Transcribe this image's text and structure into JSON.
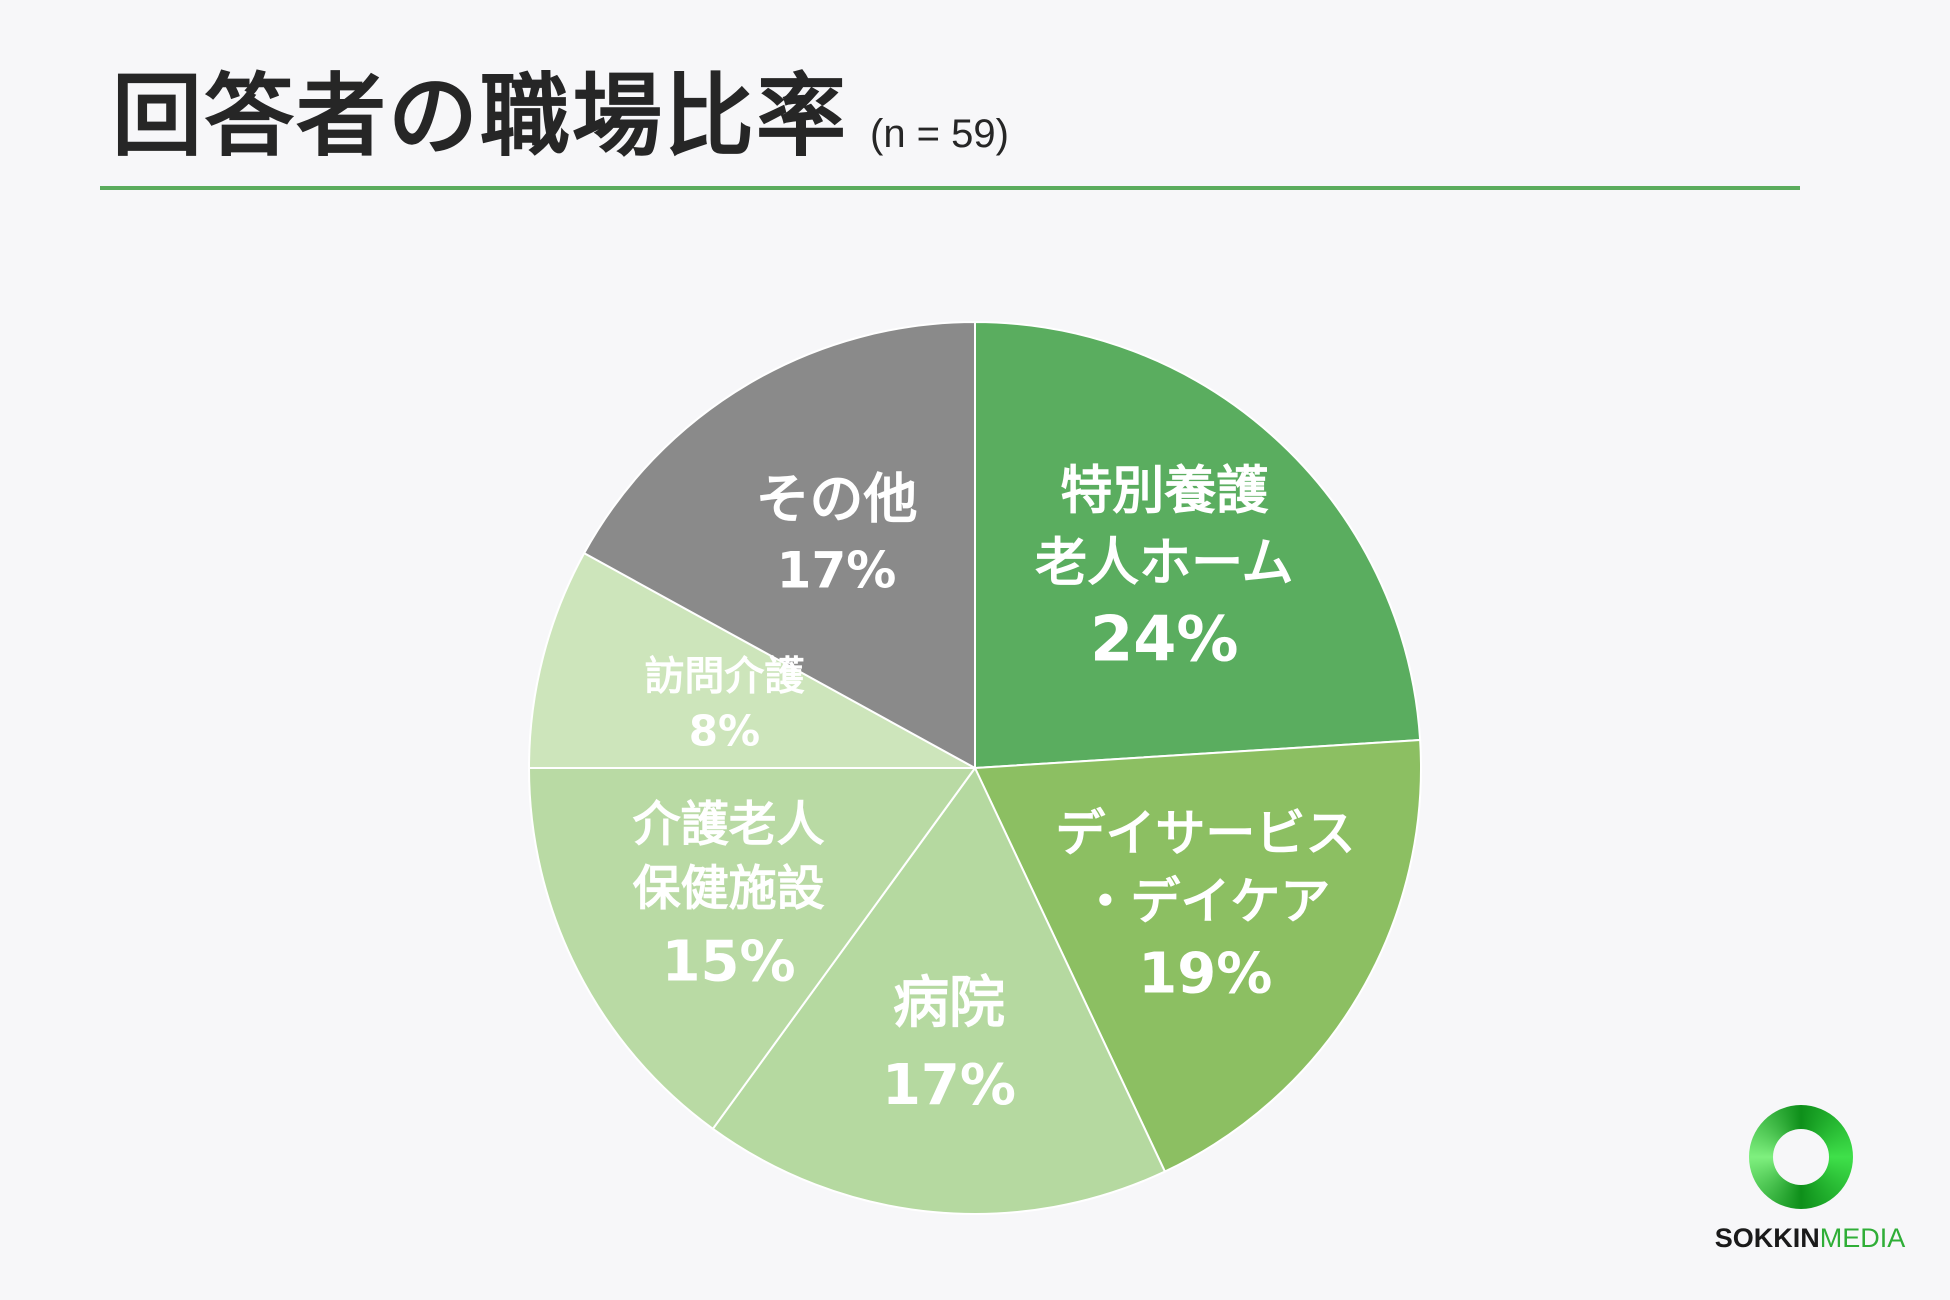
{
  "title": "回答者の職場比率",
  "subtitle": "(n = 59)",
  "chart_data": {
    "type": "pie",
    "start": "12 o'clock",
    "direction": "clockwise",
    "slices": [
      {
        "label_lines": [
          "特別養護",
          "老人ホーム"
        ],
        "value": 24,
        "display": "24%",
        "color": "#5aad5f"
      },
      {
        "label_lines": [
          "デイサービス",
          "・デイケア"
        ],
        "value": 19,
        "display": "19%",
        "color": "#8cbf62"
      },
      {
        "label_lines": [
          "病院"
        ],
        "value": 17,
        "display": "17%",
        "color": "#b5d9a0"
      },
      {
        "label_lines": [
          "介護老人",
          "保健施設"
        ],
        "value": 15,
        "display": "15%",
        "color": "#b9daa4"
      },
      {
        "label_lines": [
          "訪問介護"
        ],
        "value": 8,
        "display": "8%",
        "color": "#cde5bb"
      },
      {
        "label_lines": [
          "その他"
        ],
        "value": 17,
        "display": "17%",
        "color": "#8a8a8a"
      }
    ]
  },
  "logo": {
    "word_a": "SOKKIN",
    "word_b": "MEDIA"
  }
}
